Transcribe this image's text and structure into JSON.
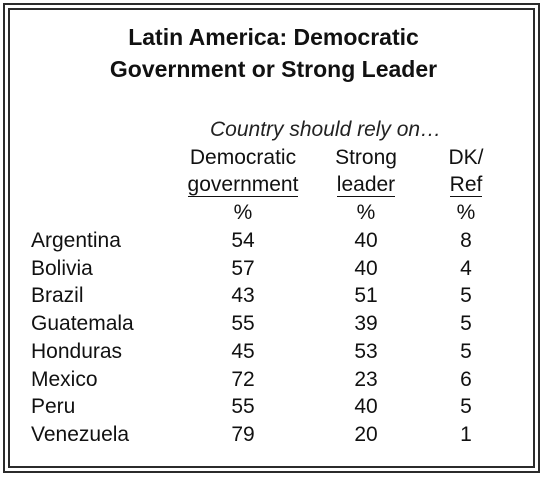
{
  "chart_data": {
    "type": "table",
    "title_line1": "Latin America:  Democratic",
    "title_line2": "Government or Strong Leader",
    "subtitle": "Country should rely on…",
    "columns": [
      {
        "line1": "Democratic",
        "line2": "government",
        "unit": "%"
      },
      {
        "line1": "Strong",
        "line2": "leader",
        "unit": "%"
      },
      {
        "line1": "DK/",
        "line2": "Ref",
        "unit": "%"
      }
    ],
    "rows": [
      {
        "country": "Argentina",
        "values": [
          54,
          40,
          8
        ]
      },
      {
        "country": "Bolivia",
        "values": [
          57,
          40,
          4
        ]
      },
      {
        "country": "Brazil",
        "values": [
          43,
          51,
          5
        ]
      },
      {
        "country": "Guatemala",
        "values": [
          55,
          39,
          5
        ]
      },
      {
        "country": "Honduras",
        "values": [
          45,
          53,
          5
        ]
      },
      {
        "country": "Mexico",
        "values": [
          72,
          23,
          6
        ]
      },
      {
        "country": "Peru",
        "values": [
          55,
          40,
          5
        ]
      },
      {
        "country": "Venezuela",
        "values": [
          79,
          20,
          1
        ]
      }
    ]
  }
}
